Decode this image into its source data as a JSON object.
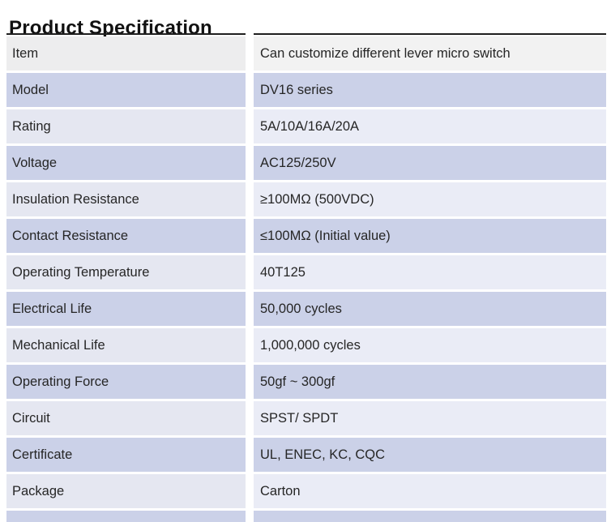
{
  "page": {
    "title": "Product Specification"
  },
  "table": {
    "rows": [
      {
        "label": "Item",
        "value": "Can customize different lever micro switch"
      },
      {
        "label": "Model",
        "value": "DV16 series"
      },
      {
        "label": "Rating",
        "value": "5A/10A/16A/20A"
      },
      {
        "label": "Voltage",
        "value": "AC125/250V"
      },
      {
        "label": "Insulation Resistance",
        "value": "≥100MΩ (500VDC)"
      },
      {
        "label": "Contact Resistance",
        "value": "≤100MΩ (Initial value)"
      },
      {
        "label": "Operating Temperature",
        "value": "40T125"
      },
      {
        "label": "Electrical Life",
        "value": "50,000 cycles"
      },
      {
        "label": "Mechanical Life",
        "value": "1,000,000 cycles"
      },
      {
        "label": "Operating Force",
        "value": "50gf ~ 300gf"
      },
      {
        "label": "Circuit",
        "value": "SPST/ SPDT"
      },
      {
        "label": "Certificate",
        "value": "UL, ENEC, KC, CQC"
      },
      {
        "label": "Package",
        "value": "Carton"
      }
    ]
  },
  "colors": {
    "title_text": "#111111",
    "body_text": "#262626",
    "top_border": "#1f1f1f",
    "row_header_left": "#ededee",
    "row_header_right": "#f2f2f2",
    "row_lavender": "#cbd1e8",
    "row_light_left": "#e5e7f1",
    "row_light_right": "#eaecf6",
    "gap_white": "#ffffff"
  }
}
